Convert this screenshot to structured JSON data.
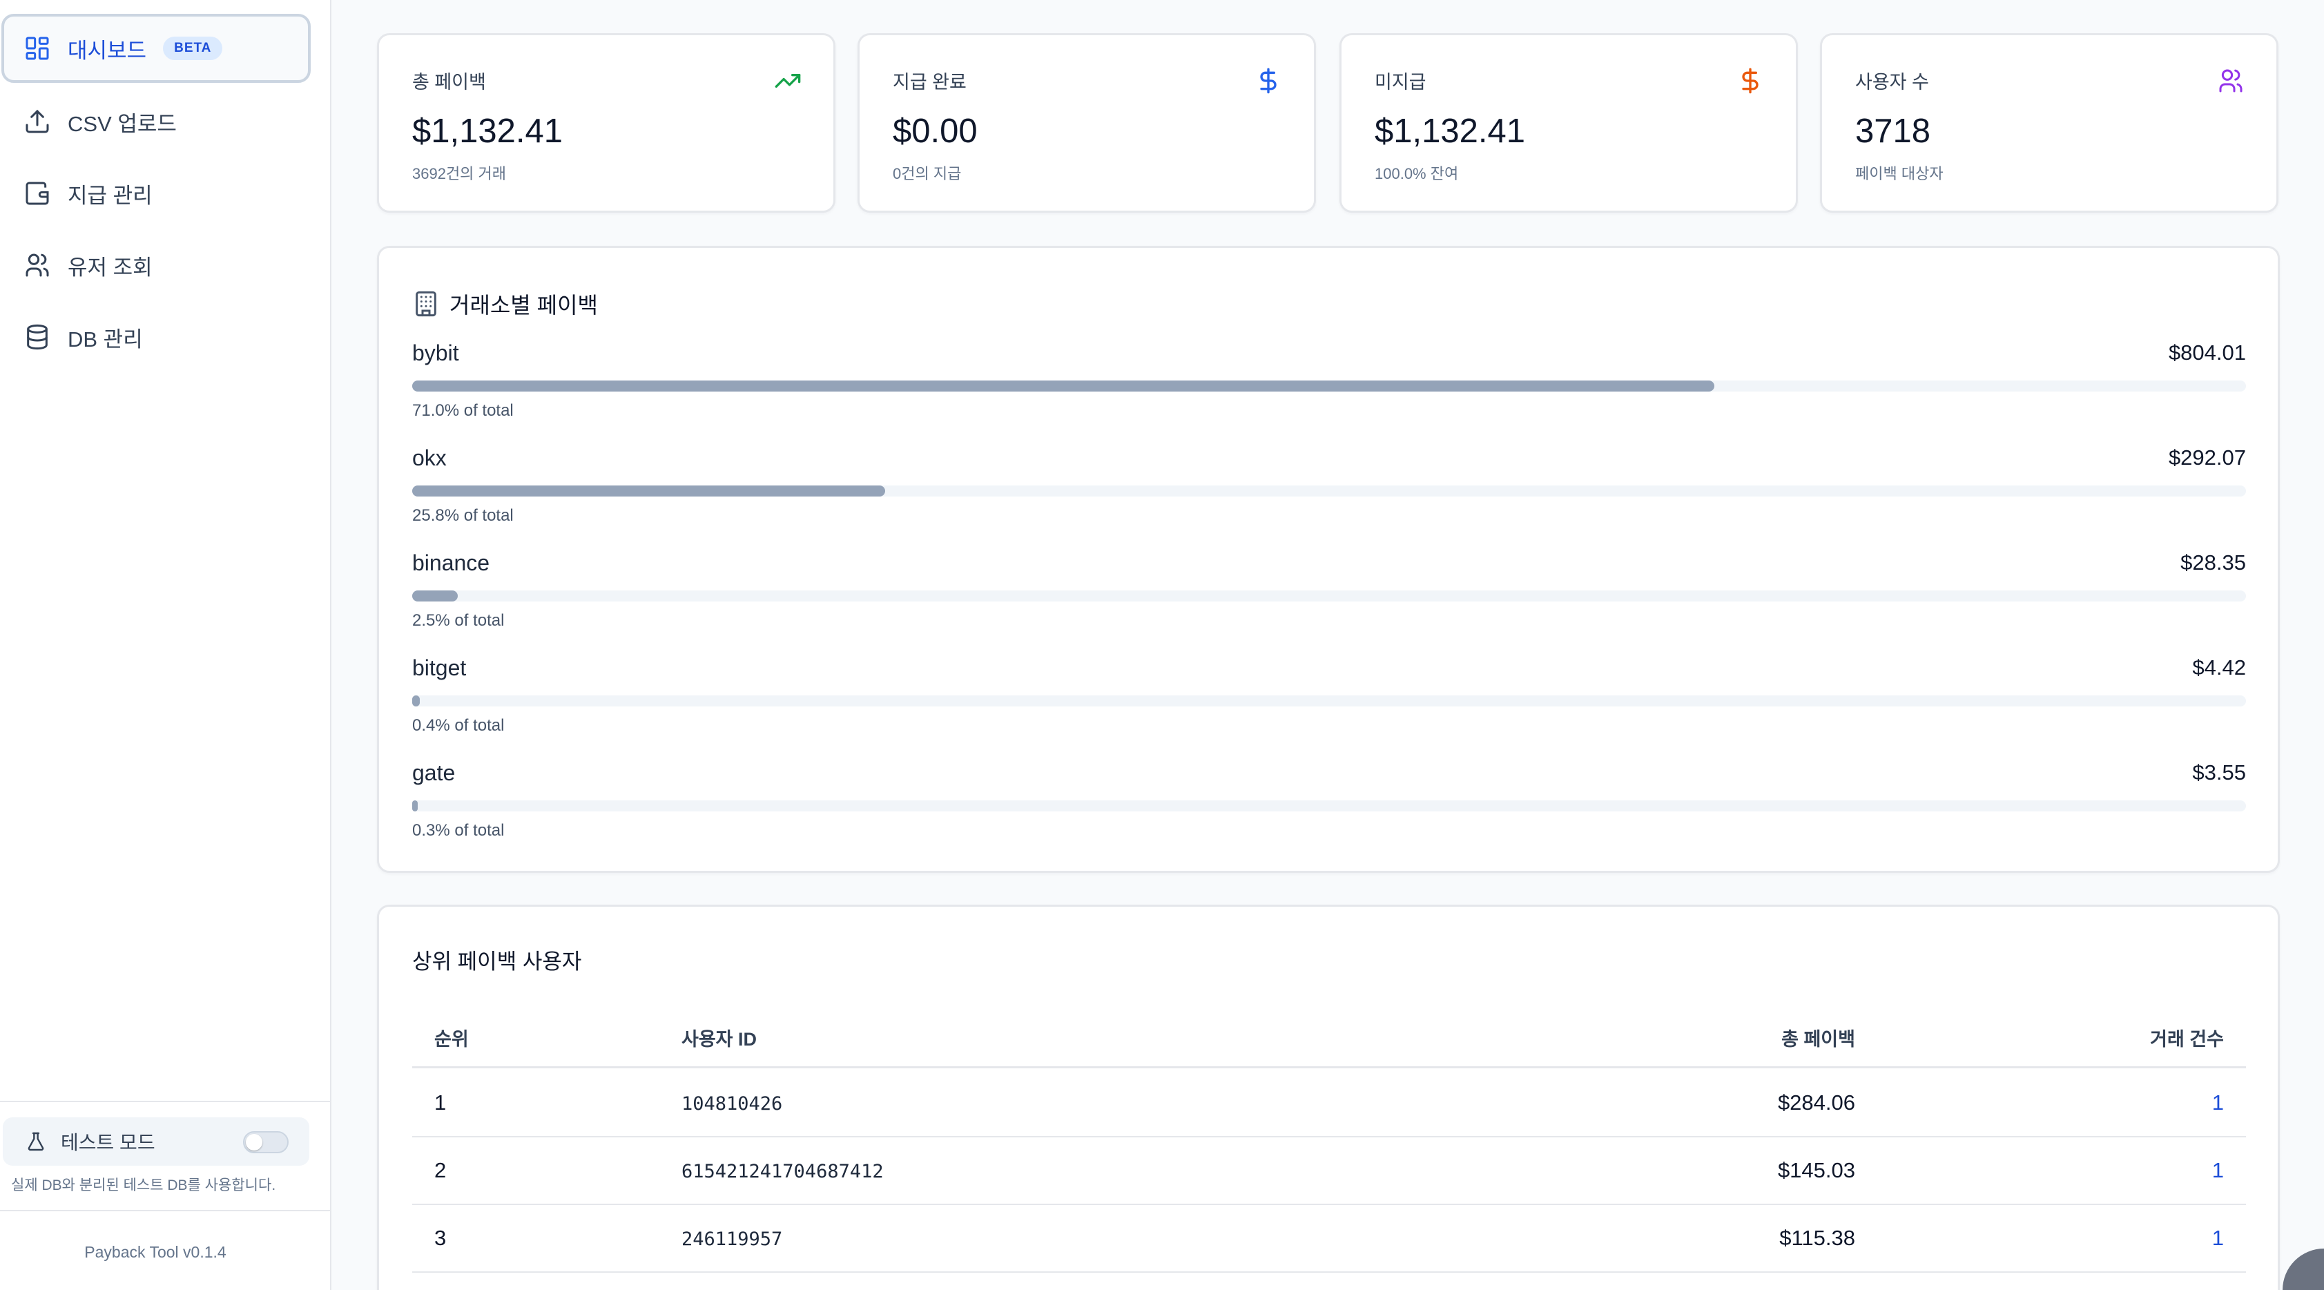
{
  "sidebar": {
    "items": [
      {
        "label": "대시보드",
        "icon": "dashboard-icon",
        "badge": "BETA",
        "active": true
      },
      {
        "label": "CSV 업로드",
        "icon": "upload-icon"
      },
      {
        "label": "지급 관리",
        "icon": "wallet-icon"
      },
      {
        "label": "유저 조회",
        "icon": "users-icon"
      },
      {
        "label": "DB 관리",
        "icon": "database-icon"
      }
    ],
    "test_mode": {
      "label": "테스트 모드",
      "icon": "flask-icon",
      "enabled": false,
      "note": "실제 DB와 분리된 테스트 DB를 사용합니다."
    },
    "version": "Payback Tool v0.1.4"
  },
  "stats": [
    {
      "label": "총 페이백",
      "value": "$1,132.41",
      "sub": "3692건의 거래",
      "icon": "trending-up-icon",
      "color": "#16a34a"
    },
    {
      "label": "지급 완료",
      "value": "$0.00",
      "sub": "0건의 지급",
      "icon": "dollar-icon",
      "color": "#2563eb"
    },
    {
      "label": "미지급",
      "value": "$1,132.41",
      "sub": "100.0% 잔여",
      "icon": "dollar-icon",
      "color": "#ea580c"
    },
    {
      "label": "사용자 수",
      "value": "3718",
      "sub": "페이백 대상자",
      "icon": "users-icon",
      "color": "#9333ea"
    }
  ],
  "exchanges": {
    "title": "거래소별 페이백",
    "icon": "building-icon",
    "rows": [
      {
        "name": "bybit",
        "amount": "$804.01",
        "pct_label": "71.0% of total",
        "pct": 71.0
      },
      {
        "name": "okx",
        "amount": "$292.07",
        "pct_label": "25.8% of total",
        "pct": 25.8
      },
      {
        "name": "binance",
        "amount": "$28.35",
        "pct_label": "2.5% of total",
        "pct": 2.5
      },
      {
        "name": "bitget",
        "amount": "$4.42",
        "pct_label": "0.4% of total",
        "pct": 0.4
      },
      {
        "name": "gate",
        "amount": "$3.55",
        "pct_label": "0.3% of total",
        "pct": 0.3
      }
    ]
  },
  "top_users": {
    "title": "상위 페이백 사용자",
    "columns": [
      "순위",
      "사용자 ID",
      "총 페이백",
      "거래 건수"
    ],
    "rows": [
      {
        "rank": "1",
        "user_id": "104810426",
        "total": "$284.06",
        "count": "1"
      },
      {
        "rank": "2",
        "user_id": "615421241704687412",
        "total": "$145.03",
        "count": "1"
      },
      {
        "rank": "3",
        "user_id": "246119957",
        "total": "$115.38",
        "count": "1"
      }
    ]
  }
}
